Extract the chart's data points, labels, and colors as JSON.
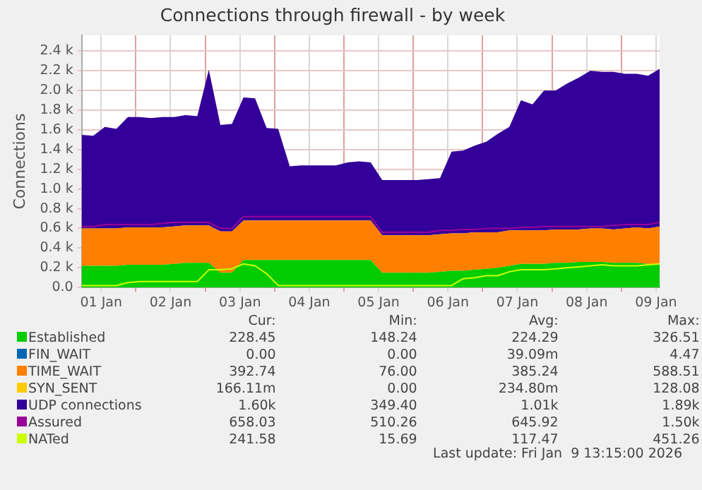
{
  "chart_data": {
    "type": "area",
    "title": "Connections through firewall - by week",
    "ylabel": "Connections",
    "stacked": true,
    "grid": true,
    "legend": "bottom",
    "marker": "none",
    "x": [
      "2026-01-01T05:15",
      "2026-01-01T09:15",
      "2026-01-01T13:15",
      "2026-01-01T17:15",
      "2026-01-01T21:15",
      "2026-01-02T01:15",
      "2026-01-02T05:15",
      "2026-01-02T09:15",
      "2026-01-02T13:15",
      "2026-01-02T17:15",
      "2026-01-02T21:15",
      "2026-01-03T01:15",
      "2026-01-03T05:15",
      "2026-01-03T09:15",
      "2026-01-03T13:15",
      "2026-01-03T17:15",
      "2026-01-03T21:15",
      "2026-01-04T01:15",
      "2026-01-04T05:15",
      "2026-01-04T09:15",
      "2026-01-04T13:15",
      "2026-01-04T17:15",
      "2026-01-04T21:15",
      "2026-01-05T01:15",
      "2026-01-05T05:15",
      "2026-01-05T09:15",
      "2026-01-05T13:15",
      "2026-01-05T17:15",
      "2026-01-05T21:15",
      "2026-01-06T01:15",
      "2026-01-06T05:15",
      "2026-01-06T09:15",
      "2026-01-06T13:15",
      "2026-01-06T17:15",
      "2026-01-06T21:15",
      "2026-01-07T01:15",
      "2026-01-07T05:15",
      "2026-01-07T09:15",
      "2026-01-07T13:15",
      "2026-01-07T17:15",
      "2026-01-07T21:15",
      "2026-01-08T01:15",
      "2026-01-08T05:15",
      "2026-01-08T09:15",
      "2026-01-08T13:15",
      "2026-01-08T17:15",
      "2026-01-08T21:15",
      "2026-01-09T01:15",
      "2026-01-09T05:15",
      "2026-01-09T09:15",
      "2026-01-09T13:15"
    ],
    "xlim": [
      "2026-01-01T05:15",
      "2026-01-09T13:15"
    ],
    "xticks": [
      {
        "value": "2026-01-01T12:00",
        "label": "01 Jan"
      },
      {
        "value": "2026-01-02T00:00",
        "label": null
      },
      {
        "value": "2026-01-02T12:00",
        "label": "02 Jan"
      },
      {
        "value": "2026-01-03T00:00",
        "label": null
      },
      {
        "value": "2026-01-03T12:00",
        "label": "03 Jan"
      },
      {
        "value": "2026-01-04T00:00",
        "label": null
      },
      {
        "value": "2026-01-04T12:00",
        "label": "04 Jan"
      },
      {
        "value": "2026-01-05T00:00",
        "label": null
      },
      {
        "value": "2026-01-05T12:00",
        "label": "05 Jan"
      },
      {
        "value": "2026-01-06T00:00",
        "label": null
      },
      {
        "value": "2026-01-06T12:00",
        "label": "06 Jan"
      },
      {
        "value": "2026-01-07T00:00",
        "label": null
      },
      {
        "value": "2026-01-07T12:00",
        "label": "07 Jan"
      },
      {
        "value": "2026-01-08T00:00",
        "label": null
      },
      {
        "value": "2026-01-08T12:00",
        "label": "08 Jan"
      },
      {
        "value": "2026-01-09T00:00",
        "label": null
      },
      {
        "value": "2026-01-09T12:00",
        "label": "09 Jan"
      }
    ],
    "ylim": [
      0,
      2560
    ],
    "yticks": [
      {
        "value": 0,
        "label": "0.0"
      },
      {
        "value": 200,
        "label": "0.2 k"
      },
      {
        "value": 400,
        "label": "0.4 k"
      },
      {
        "value": 600,
        "label": "0.6 k"
      },
      {
        "value": 800,
        "label": "0.8 k"
      },
      {
        "value": 1000,
        "label": "1.0 k"
      },
      {
        "value": 1200,
        "label": "1.2 k"
      },
      {
        "value": 1400,
        "label": "1.4 k"
      },
      {
        "value": 1600,
        "label": "1.6 k"
      },
      {
        "value": 1800,
        "label": "1.8 k"
      },
      {
        "value": 2000,
        "label": "2.0 k"
      },
      {
        "value": 2200,
        "label": "2.2 k"
      },
      {
        "value": 2400,
        "label": "2.4 k"
      }
    ],
    "series": [
      {
        "name": "Established",
        "color": "#00cc00",
        "values": [
          220,
          220,
          220,
          220,
          230,
          230,
          230,
          230,
          240,
          250,
          250,
          250,
          150,
          150,
          280,
          280,
          280,
          280,
          280,
          280,
          280,
          280,
          280,
          280,
          280,
          280,
          150,
          150,
          150,
          150,
          150,
          160,
          170,
          170,
          180,
          190,
          200,
          220,
          240,
          240,
          240,
          250,
          250,
          260,
          260,
          260,
          250,
          250,
          250,
          240,
          230
        ]
      },
      {
        "name": "FIN_WAIT",
        "color": "#0066b3",
        "values": [
          null,
          null,
          null,
          null,
          null,
          null,
          null,
          null,
          null,
          null,
          null,
          null,
          null,
          null,
          null,
          null,
          null,
          null,
          null,
          null,
          null,
          null,
          null,
          null,
          null,
          null,
          null,
          null,
          null,
          null,
          null,
          null,
          null,
          null,
          null,
          null,
          null,
          null,
          null,
          null,
          null,
          null,
          null,
          null,
          null,
          null,
          null,
          null,
          null,
          null,
          null
        ]
      },
      {
        "name": "TIME_WAIT",
        "color": "#ff8000",
        "values": [
          380,
          380,
          380,
          380,
          380,
          380,
          380,
          380,
          380,
          380,
          380,
          380,
          420,
          420,
          400,
          400,
          400,
          400,
          400,
          400,
          400,
          400,
          400,
          400,
          400,
          400,
          380,
          380,
          380,
          380,
          380,
          380,
          380,
          380,
          380,
          370,
          360,
          360,
          340,
          340,
          340,
          340,
          340,
          330,
          340,
          340,
          340,
          350,
          360,
          360,
          390
        ]
      },
      {
        "name": "SYN_SENT",
        "color": "#ffcc00",
        "values": [
          null,
          null,
          null,
          null,
          null,
          null,
          null,
          null,
          null,
          null,
          null,
          null,
          null,
          null,
          null,
          null,
          null,
          null,
          null,
          null,
          null,
          null,
          null,
          null,
          null,
          null,
          null,
          null,
          null,
          null,
          null,
          null,
          null,
          null,
          null,
          null,
          null,
          null,
          null,
          null,
          null,
          null,
          null,
          null,
          null,
          null,
          null,
          null,
          null,
          null,
          null
        ]
      },
      {
        "name": "UDP connections",
        "color": "#330099",
        "values": [
          950,
          940,
          1030,
          1010,
          1120,
          1120,
          1110,
          1120,
          1110,
          1120,
          1110,
          1580,
          1080,
          1090,
          1250,
          1240,
          940,
          930,
          550,
          560,
          560,
          560,
          560,
          590,
          600,
          590,
          560,
          560,
          560,
          560,
          570,
          570,
          830,
          840,
          880,
          920,
          1000,
          1050,
          1320,
          1280,
          1420,
          1410,
          1480,
          1540,
          1600,
          1590,
          1600,
          1570,
          1560,
          1550,
          1600
        ]
      },
      {
        "name": "Assured",
        "type": "line",
        "color": "#990099",
        "values": [
          620,
          620,
          640,
          640,
          640,
          640,
          640,
          650,
          660,
          660,
          660,
          660,
          600,
          600,
          720,
          720,
          720,
          720,
          720,
          720,
          720,
          720,
          720,
          720,
          720,
          720,
          560,
          560,
          560,
          560,
          560,
          580,
          580,
          590,
          590,
          600,
          600,
          600,
          610,
          610,
          620,
          620,
          620,
          620,
          620,
          620,
          630,
          640,
          640,
          640,
          660
        ]
      },
      {
        "name": "NATed",
        "type": "line",
        "color": "#ccff00",
        "values": [
          20,
          20,
          20,
          20,
          50,
          60,
          60,
          60,
          60,
          60,
          60,
          180,
          180,
          190,
          240,
          220,
          140,
          20,
          20,
          20,
          20,
          20,
          20,
          20,
          20,
          20,
          20,
          20,
          20,
          20,
          20,
          20,
          20,
          90,
          100,
          120,
          120,
          160,
          180,
          180,
          180,
          190,
          200,
          210,
          220,
          230,
          220,
          220,
          220,
          230,
          240
        ]
      }
    ],
    "annotations": [
      "Cur:",
      "Min:",
      "Avg:",
      "Max:",
      "228.45",
      "148.24",
      "224.29",
      "326.51",
      "0.00",
      "0.00",
      "39.09m",
      "4.47",
      "392.74",
      "76.00",
      "385.24",
      "588.51",
      "166.11m",
      "0.00",
      "234.80m",
      "128.08",
      "1.60k",
      "349.40",
      "1.01k",
      "1.89k",
      "658.03",
      "510.26",
      "645.92",
      "1.50k",
      "241.58",
      "15.69",
      "117.47",
      "451.26",
      "Last update: Fri Jan  9 13:15:00 2026"
    ]
  }
}
